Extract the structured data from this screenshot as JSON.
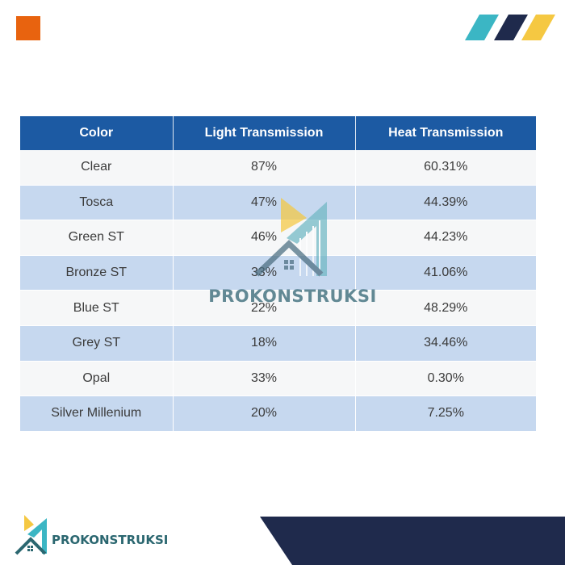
{
  "brand": {
    "name": "PROKONSTRUKSI"
  },
  "colors": {
    "orange": "#e8630f",
    "teal": "#3bb6c4",
    "navy": "#1f2a4c",
    "yellow": "#f5c842",
    "header_blue": "#1c5aa3",
    "row_blue": "#c6d8ef"
  },
  "table": {
    "headers": [
      "Color",
      "Light Transmission",
      "Heat Transmission"
    ],
    "rows": [
      [
        "Clear",
        "87%",
        "60.31%"
      ],
      [
        "Tosca",
        "47%",
        "44.39%"
      ],
      [
        "Green ST",
        "46%",
        "44.23%"
      ],
      [
        "Bronze ST",
        "33%",
        "41.06%"
      ],
      [
        "Blue ST",
        "22%",
        "48.29%"
      ],
      [
        "Grey ST",
        "18%",
        "34.46%"
      ],
      [
        "Opal",
        "33%",
        "0.30%"
      ],
      [
        "Silver Millenium",
        "20%",
        "7.25%"
      ]
    ]
  },
  "icons": {
    "watermark": "house-building-logo-icon",
    "footer": "house-building-logo-icon"
  }
}
